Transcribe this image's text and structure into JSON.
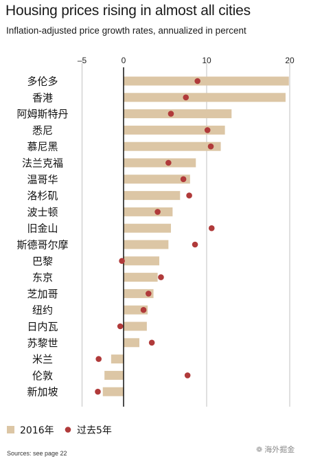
{
  "header": {
    "title": "Housing prices rising in almost all cities",
    "subtitle": "Inflation-adjusted price growth rates, annualized in percent"
  },
  "legend": {
    "bar_label": "2016年",
    "dot_label": "过去5年"
  },
  "footer": {
    "sources": "Sources: see page 22",
    "watermark": "海外掘金"
  },
  "colors": {
    "bar": "#dcc6a5",
    "dot": "#b03a3a",
    "zero_line": "#000000",
    "grid": "#b3b3b3"
  },
  "icons": {
    "watermark_icon": "wechat-icon"
  },
  "chart_data": {
    "type": "bar",
    "orientation": "horizontal",
    "title": "Housing prices rising in almost all cities",
    "subtitle": "Inflation-adjusted price growth rates, annualized in percent",
    "xlim": [
      -5,
      20
    ],
    "xticks": [
      -5,
      0,
      10,
      20
    ],
    "grid": true,
    "legend_position": "bottom-left",
    "categories": [
      "多伦多",
      "香港",
      "阿姆斯特丹",
      "悉尼",
      "慕尼黑",
      "法兰克福",
      "温哥华",
      "洛杉矶",
      "波士顿",
      "旧金山",
      "斯德哥尔摩",
      "巴黎",
      "东京",
      "芝加哥",
      "纽约",
      "日内瓦",
      "苏黎世",
      "米兰",
      "伦敦",
      "新加坡"
    ],
    "series": [
      {
        "name": "2016年",
        "mark": "bar",
        "values": [
          19.9,
          19.5,
          13.0,
          12.2,
          11.7,
          8.7,
          8.0,
          6.8,
          5.9,
          5.7,
          5.4,
          4.3,
          4.1,
          3.6,
          2.9,
          2.8,
          1.9,
          -1.5,
          -2.3,
          -2.5
        ]
      },
      {
        "name": "过去5年",
        "mark": "dot",
        "values": [
          8.9,
          7.5,
          5.7,
          10.1,
          10.5,
          5.4,
          7.2,
          7.9,
          4.1,
          10.6,
          8.6,
          -0.2,
          4.5,
          3.0,
          2.4,
          -0.4,
          3.4,
          -3.0,
          7.7,
          -3.1
        ]
      }
    ]
  }
}
